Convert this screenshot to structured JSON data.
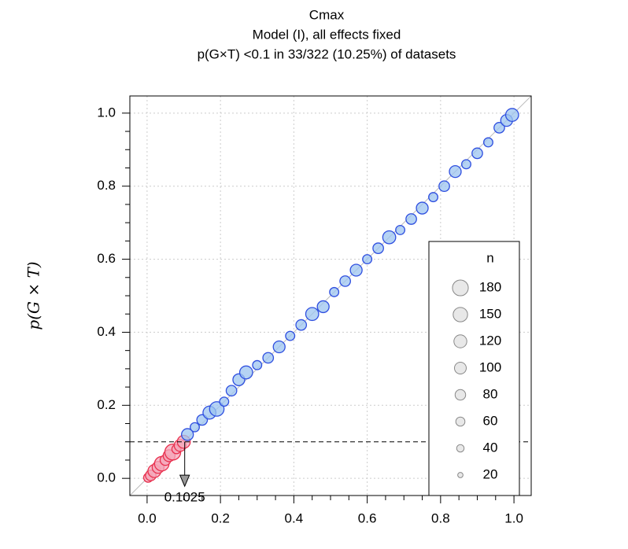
{
  "chart_data": {
    "type": "scatter",
    "title": "Cmax",
    "subtitle": [
      "Model (I), all effects fixed",
      "p(G×T) <0.1 in 33/322 (10.25%) of datasets"
    ],
    "y_label": "p(G × T)",
    "xlim": [
      -0.047,
      1.047
    ],
    "ylim": [
      -0.047,
      1.047
    ],
    "xticks": [
      {
        "value": 0,
        "label": "0.0"
      },
      {
        "value": 0.2,
        "label": "0.2"
      },
      {
        "value": 0.4,
        "label": "0.4"
      },
      {
        "value": 0.6,
        "label": "0.6"
      },
      {
        "value": 0.8,
        "label": "0.8"
      },
      {
        "value": 1,
        "label": "1.0"
      }
    ],
    "yticks": [
      {
        "value": 0,
        "label": "0.0"
      },
      {
        "value": 0.2,
        "label": "0.2"
      },
      {
        "value": 0.4,
        "label": "0.4"
      },
      {
        "value": 0.6,
        "label": "0.6"
      },
      {
        "value": 0.8,
        "label": "0.8"
      },
      {
        "value": 1,
        "label": "1.0"
      }
    ],
    "minor_ticks": [
      0.05,
      0.1,
      0.15,
      0.25,
      0.3,
      0.35,
      0.45,
      0.5,
      0.55,
      0.65,
      0.7,
      0.75,
      0.85,
      0.9,
      0.95
    ],
    "grid": true,
    "threshold": 0.1,
    "quantile": {
      "value": 0.1025,
      "label": "0.1025"
    },
    "series": [
      {
        "color": "#e8314f",
        "fill": "#f4a6b8",
        "x": [
          0.003,
          0.01,
          0.02,
          0.03,
          0.04,
          0.05,
          0.06,
          0.07,
          0.08,
          0.09,
          0.1
        ],
        "values": [
          0.002,
          0.008,
          0.02,
          0.03,
          0.04,
          0.05,
          0.062,
          0.072,
          0.08,
          0.09,
          0.1
        ],
        "sizes": [
          60,
          80,
          120,
          100,
          150,
          80,
          100,
          180,
          60,
          100,
          120
        ]
      },
      {
        "color": "#2f4fe0",
        "fill": "#9cc4f0",
        "x": [
          0.11,
          0.13,
          0.15,
          0.17,
          0.19,
          0.21,
          0.23,
          0.25,
          0.27,
          0.3,
          0.33,
          0.36,
          0.39,
          0.42,
          0.45,
          0.48,
          0.51,
          0.54,
          0.57,
          0.6,
          0.63,
          0.66,
          0.69,
          0.72,
          0.75,
          0.78,
          0.81,
          0.84,
          0.87,
          0.9,
          0.93,
          0.96,
          0.98,
          0.995
        ],
        "values": [
          0.12,
          0.14,
          0.16,
          0.18,
          0.19,
          0.21,
          0.24,
          0.27,
          0.29,
          0.31,
          0.33,
          0.36,
          0.39,
          0.42,
          0.45,
          0.47,
          0.51,
          0.54,
          0.57,
          0.6,
          0.63,
          0.66,
          0.68,
          0.71,
          0.74,
          0.77,
          0.8,
          0.84,
          0.86,
          0.89,
          0.92,
          0.96,
          0.98,
          0.995
        ],
        "sizes": [
          100,
          60,
          80,
          120,
          150,
          60,
          80,
          100,
          120,
          60,
          80,
          100,
          60,
          80,
          120,
          100,
          60,
          80,
          100,
          60,
          80,
          120,
          60,
          80,
          100,
          60,
          80,
          100,
          60,
          80,
          60,
          80,
          100,
          120
        ]
      }
    ],
    "legend": {
      "title": "n",
      "position": "bottom-right",
      "sizes": [
        180,
        150,
        120,
        100,
        80,
        60,
        40,
        20
      ]
    }
  }
}
